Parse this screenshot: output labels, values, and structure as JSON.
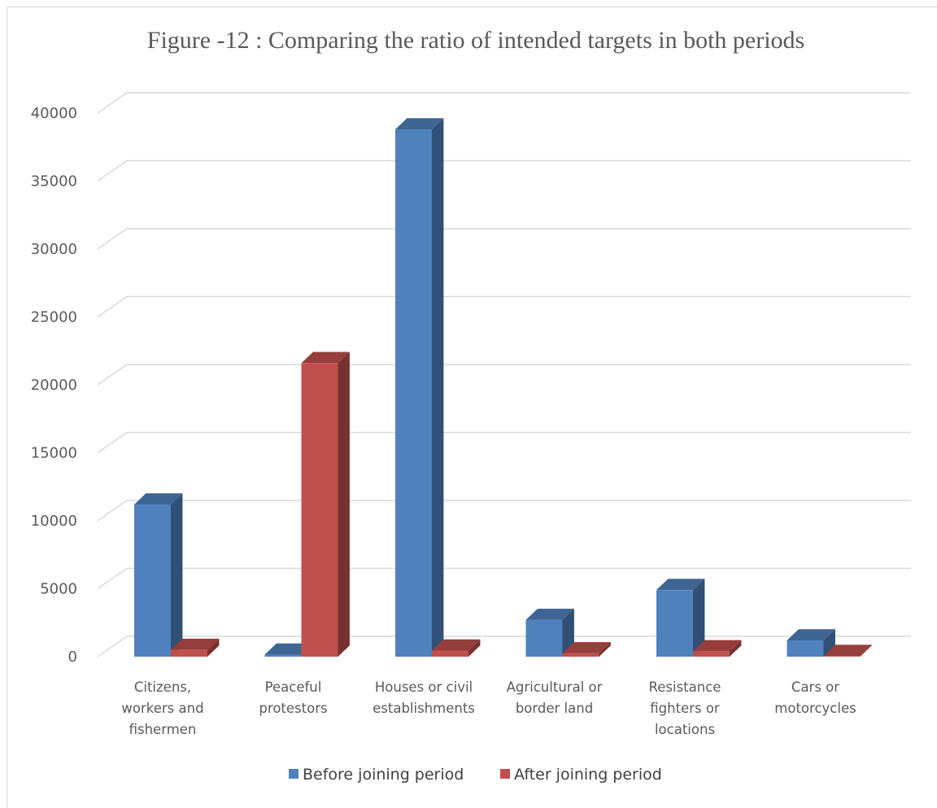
{
  "chart_data": {
    "type": "bar",
    "title": "Figure -12 : Comparing the ratio of intended targets in both periods",
    "xlabel": "",
    "ylabel": "",
    "ylim": [
      0,
      40000
    ],
    "yticks": [
      0,
      5000,
      10000,
      15000,
      20000,
      25000,
      30000,
      35000,
      40000
    ],
    "grid": true,
    "legend_position": "bottom",
    "categories": [
      [
        "Citizens,",
        "workers and",
        "fishermen"
      ],
      [
        "Peaceful",
        "protestors"
      ],
      [
        "Houses or civil",
        "establishments"
      ],
      [
        "Agricultural or",
        "border land"
      ],
      [
        "Resistance",
        "fighters or",
        "locations"
      ],
      [
        "Cars or",
        "motorcycles"
      ]
    ],
    "series": [
      {
        "name": "Before joining period",
        "color": "#4f81bd",
        "values": [
          11200,
          150,
          38800,
          2700,
          4900,
          1200
        ]
      },
      {
        "name": "After joining period",
        "color": "#c0504d",
        "values": [
          500,
          21600,
          450,
          250,
          400,
          50
        ]
      }
    ]
  }
}
